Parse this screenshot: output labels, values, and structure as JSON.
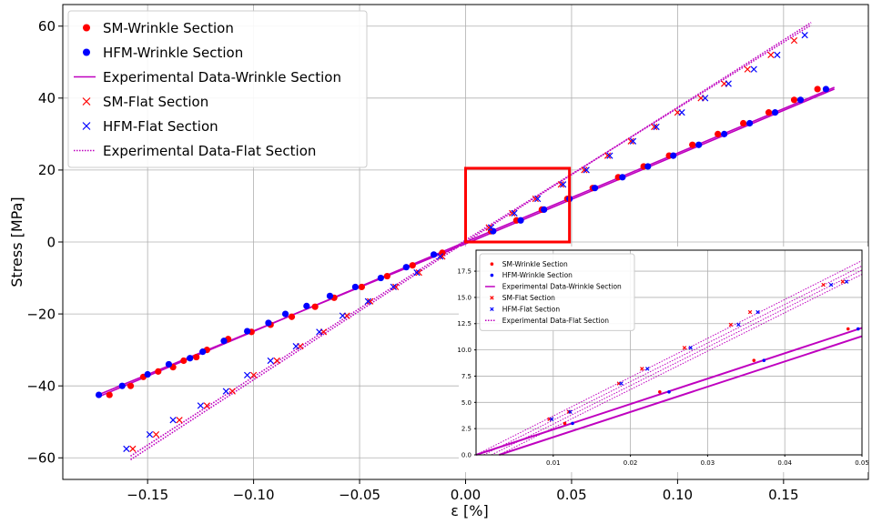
{
  "colors": {
    "sm": "#ff0000",
    "hfm": "#0000ff",
    "experimental": "#bf00bf",
    "zoom_box": "#ff0000",
    "grid": "#b0b0b0"
  },
  "chart_data": [
    {
      "type": "scatter",
      "xlabel": "ε [%]",
      "ylabel": "Stress [MPa]",
      "xlim": [
        -0.19,
        0.19
      ],
      "ylim": [
        -66,
        66
      ],
      "xticks": [
        -0.15,
        -0.1,
        -0.05,
        0.0,
        0.05,
        0.1,
        0.15
      ],
      "xtick_labels": [
        "−0.15",
        "−0.10",
        "−0.05",
        "0.00",
        "0.05",
        "0.10",
        "0.15"
      ],
      "yticks": [
        -60,
        -40,
        -20,
        0,
        20,
        40,
        60
      ],
      "ytick_labels": [
        "−60",
        "−40",
        "−20",
        "0",
        "20",
        "40",
        "60"
      ],
      "grid": true,
      "legend_position": "top-left",
      "zoom_box": {
        "x": [
          0.0,
          0.049
        ],
        "y": [
          0,
          20.5
        ]
      },
      "series": [
        {
          "name": "SM-Wrinkle Section",
          "marker": "dot",
          "color": "red",
          "points": [
            [
              -0.168,
              -42.5
            ],
            [
              -0.158,
              -40.0
            ],
            [
              -0.152,
              -37.5
            ],
            [
              -0.145,
              -36.0
            ],
            [
              -0.138,
              -34.8
            ],
            [
              -0.133,
              -33.0
            ],
            [
              -0.127,
              -32.0
            ],
            [
              -0.122,
              -30.0
            ],
            [
              -0.112,
              -27.0
            ],
            [
              -0.101,
              -25.0
            ],
            [
              -0.092,
              -23.0
            ],
            [
              -0.082,
              -20.8
            ],
            [
              -0.071,
              -18.0
            ],
            [
              -0.062,
              -15.5
            ],
            [
              -0.049,
              -12.5
            ],
            [
              -0.037,
              -9.5
            ],
            [
              -0.025,
              -6.5
            ],
            [
              -0.011,
              -3.0
            ],
            [
              0.012,
              3.0
            ],
            [
              0.024,
              6.0
            ],
            [
              0.036,
              9.0
            ],
            [
              0.048,
              12.0
            ],
            [
              0.06,
              15.0
            ],
            [
              0.072,
              18.0
            ],
            [
              0.084,
              21.0
            ],
            [
              0.096,
              24.0
            ],
            [
              0.107,
              27.0
            ],
            [
              0.119,
              30.0
            ],
            [
              0.131,
              33.0
            ],
            [
              0.143,
              36.0
            ],
            [
              0.155,
              39.5
            ],
            [
              0.166,
              42.5
            ]
          ]
        },
        {
          "name": "HFM-Wrinkle Section",
          "marker": "dot",
          "color": "blue",
          "points": [
            [
              -0.173,
              -42.5
            ],
            [
              -0.162,
              -40.0
            ],
            [
              -0.15,
              -36.8
            ],
            [
              -0.14,
              -34.0
            ],
            [
              -0.13,
              -32.3
            ],
            [
              -0.124,
              -30.5
            ],
            [
              -0.114,
              -27.5
            ],
            [
              -0.103,
              -24.8
            ],
            [
              -0.093,
              -22.5
            ],
            [
              -0.085,
              -20.0
            ],
            [
              -0.075,
              -17.8
            ],
            [
              -0.064,
              -15.0
            ],
            [
              -0.052,
              -12.5
            ],
            [
              -0.04,
              -10.0
            ],
            [
              -0.028,
              -7.0
            ],
            [
              -0.015,
              -3.5
            ],
            [
              0.013,
              3.0
            ],
            [
              0.026,
              6.0
            ],
            [
              0.037,
              9.0
            ],
            [
              0.049,
              12.0
            ],
            [
              0.061,
              15.0
            ],
            [
              0.074,
              18.0
            ],
            [
              0.086,
              21.0
            ],
            [
              0.098,
              24.0
            ],
            [
              0.11,
              27.0
            ],
            [
              0.122,
              30.0
            ],
            [
              0.134,
              33.0
            ],
            [
              0.146,
              36.0
            ],
            [
              0.158,
              39.5
            ],
            [
              0.17,
              42.5
            ]
          ]
        },
        {
          "name": "Experimental Data-Wrinkle Section",
          "line": "solid",
          "color": "#bf00bf",
          "lines": [
            [
              [
                -0.173,
                -43.0
              ],
              [
                0.0,
                0.0
              ],
              [
                0.174,
                43.0
              ]
            ],
            [
              [
                -0.173,
                -42.4
              ],
              [
                0.0,
                -0.5
              ],
              [
                0.174,
                42.5
              ]
            ]
          ]
        },
        {
          "name": "SM-Flat Section",
          "marker": "x",
          "color": "red",
          "points": [
            [
              -0.157,
              -57.5
            ],
            [
              -0.146,
              -53.5
            ],
            [
              -0.135,
              -49.5
            ],
            [
              -0.122,
              -45.5
            ],
            [
              -0.11,
              -41.5
            ],
            [
              -0.1,
              -37.0
            ],
            [
              -0.089,
              -33.0
            ],
            [
              -0.078,
              -29.0
            ],
            [
              -0.067,
              -25.0
            ],
            [
              -0.056,
              -20.5
            ],
            [
              -0.045,
              -16.5
            ],
            [
              -0.033,
              -12.5
            ],
            [
              -0.022,
              -8.5
            ],
            [
              -0.011,
              -4.0
            ],
            [
              0.011,
              4.0
            ],
            [
              0.022,
              8.0
            ],
            [
              0.033,
              12.0
            ],
            [
              0.045,
              16.0
            ],
            [
              0.056,
              20.0
            ],
            [
              0.067,
              24.0
            ],
            [
              0.078,
              28.0
            ],
            [
              0.089,
              32.0
            ],
            [
              0.1,
              36.0
            ],
            [
              0.111,
              40.0
            ],
            [
              0.122,
              44.0
            ],
            [
              0.133,
              48.0
            ],
            [
              0.144,
              52.0
            ],
            [
              0.155,
              56.0
            ]
          ]
        },
        {
          "name": "HFM-Flat Section",
          "marker": "x",
          "color": "blue",
          "points": [
            [
              -0.16,
              -57.5
            ],
            [
              -0.149,
              -53.5
            ],
            [
              -0.138,
              -49.5
            ],
            [
              -0.125,
              -45.5
            ],
            [
              -0.113,
              -41.5
            ],
            [
              -0.103,
              -37.0
            ],
            [
              -0.092,
              -33.0
            ],
            [
              -0.08,
              -29.0
            ],
            [
              -0.069,
              -25.0
            ],
            [
              -0.058,
              -20.5
            ],
            [
              -0.046,
              -16.5
            ],
            [
              -0.034,
              -12.5
            ],
            [
              -0.023,
              -8.5
            ],
            [
              -0.012,
              -4.0
            ],
            [
              0.012,
              4.0
            ],
            [
              0.023,
              8.0
            ],
            [
              0.034,
              12.0
            ],
            [
              0.046,
              16.0
            ],
            [
              0.057,
              20.0
            ],
            [
              0.068,
              24.0
            ],
            [
              0.079,
              28.0
            ],
            [
              0.09,
              32.0
            ],
            [
              0.102,
              36.0
            ],
            [
              0.113,
              40.0
            ],
            [
              0.124,
              44.0
            ],
            [
              0.136,
              48.0
            ],
            [
              0.147,
              52.0
            ],
            [
              0.16,
              57.5
            ]
          ]
        },
        {
          "name": "Experimental Data-Flat Section",
          "line": "dotted",
          "color": "#bf00bf",
          "lines": [
            [
              [
                -0.158,
                -60.5
              ],
              [
                0.0,
                0.0
              ],
              [
                0.163,
                61.0
              ]
            ],
            [
              [
                -0.158,
                -59.5
              ],
              [
                0.0,
                0.5
              ],
              [
                0.163,
                60.3
              ]
            ]
          ]
        }
      ]
    },
    {
      "type": "scatter",
      "title": "",
      "xlim": [
        0.0,
        0.05
      ],
      "ylim": [
        0.0,
        19.5
      ],
      "xticks": [
        0.01,
        0.02,
        0.03,
        0.04,
        0.05
      ],
      "xtick_labels": [
        "0.01",
        "0.02",
        "0.03",
        "0.04",
        "0.05"
      ],
      "yticks": [
        0.0,
        2.5,
        5.0,
        7.5,
        10.0,
        12.5,
        15.0,
        17.5
      ],
      "ytick_labels": [
        "0.0",
        "2.5",
        "5.0",
        "7.5",
        "10.0",
        "12.5",
        "15.0",
        "17.5"
      ],
      "grid": true,
      "legend_position": "top-left",
      "series": [
        {
          "name": "SM-Wrinkle Section",
          "marker": "dot",
          "color": "red",
          "points": [
            [
              0.0115,
              3.0
            ],
            [
              0.0238,
              6.0
            ],
            [
              0.036,
              9.0
            ],
            [
              0.0482,
              12.0
            ]
          ]
        },
        {
          "name": "HFM-Wrinkle Section",
          "marker": "dot",
          "color": "blue",
          "points": [
            [
              0.0125,
              3.0
            ],
            [
              0.025,
              6.0
            ],
            [
              0.0373,
              9.0
            ],
            [
              0.0495,
              12.0
            ]
          ]
        },
        {
          "name": "Experimental Data-Wrinkle Section",
          "line": "solid",
          "color": "#bf00bf",
          "lines": [
            [
              [
                0.0,
                0.0
              ],
              [
                0.05,
                12.1
              ]
            ],
            [
              [
                0.003,
                0.0
              ],
              [
                0.05,
                11.3
              ]
            ]
          ]
        },
        {
          "name": "SM-Flat Section",
          "marker": "x",
          "color": "red",
          "points": [
            [
              0.0095,
              3.4
            ],
            [
              0.012,
              4.1
            ],
            [
              0.0185,
              6.8
            ],
            [
              0.0215,
              8.2
            ],
            [
              0.027,
              10.2
            ],
            [
              0.033,
              12.4
            ],
            [
              0.0355,
              13.6
            ],
            [
              0.045,
              16.2
            ],
            [
              0.0475,
              16.5
            ]
          ]
        },
        {
          "name": "HFM-Flat Section",
          "marker": "x",
          "color": "blue",
          "points": [
            [
              0.0098,
              3.4
            ],
            [
              0.0122,
              4.1
            ],
            [
              0.0188,
              6.8
            ],
            [
              0.0222,
              8.2
            ],
            [
              0.0278,
              10.2
            ],
            [
              0.034,
              12.4
            ],
            [
              0.0365,
              13.6
            ],
            [
              0.046,
              16.2
            ],
            [
              0.048,
              16.5
            ]
          ]
        },
        {
          "name": "Experimental Data-Flat Section",
          "line": "dotted",
          "color": "#bf00bf",
          "lines": [
            [
              [
                0.0,
                0.0
              ],
              [
                0.05,
                18.5
              ]
            ],
            [
              [
                0.001,
                0.0
              ],
              [
                0.05,
                18.0
              ]
            ],
            [
              [
                0.002,
                0.0
              ],
              [
                0.05,
                17.6
              ]
            ],
            [
              [
                0.003,
                0.0
              ],
              [
                0.05,
                17.2
              ]
            ]
          ]
        }
      ]
    }
  ]
}
